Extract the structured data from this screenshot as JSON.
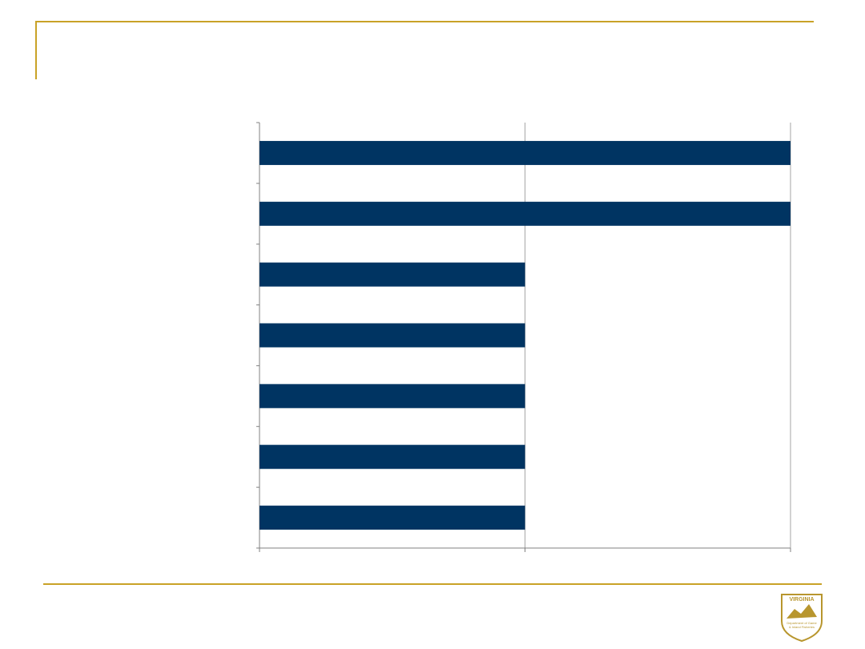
{
  "chart_data": {
    "type": "barh",
    "categories": [
      null,
      null,
      null,
      null,
      null,
      null,
      null
    ],
    "values": [
      2,
      2,
      1,
      1,
      1,
      1,
      1
    ],
    "color": "#003462",
    "xlim": [
      0,
      2
    ],
    "xticks": [
      0,
      1,
      2
    ],
    "grid": true
  },
  "logo": {
    "title": "VIRGINIA",
    "lines": [
      "Department of Game",
      "& Inland Fisheries"
    ]
  }
}
